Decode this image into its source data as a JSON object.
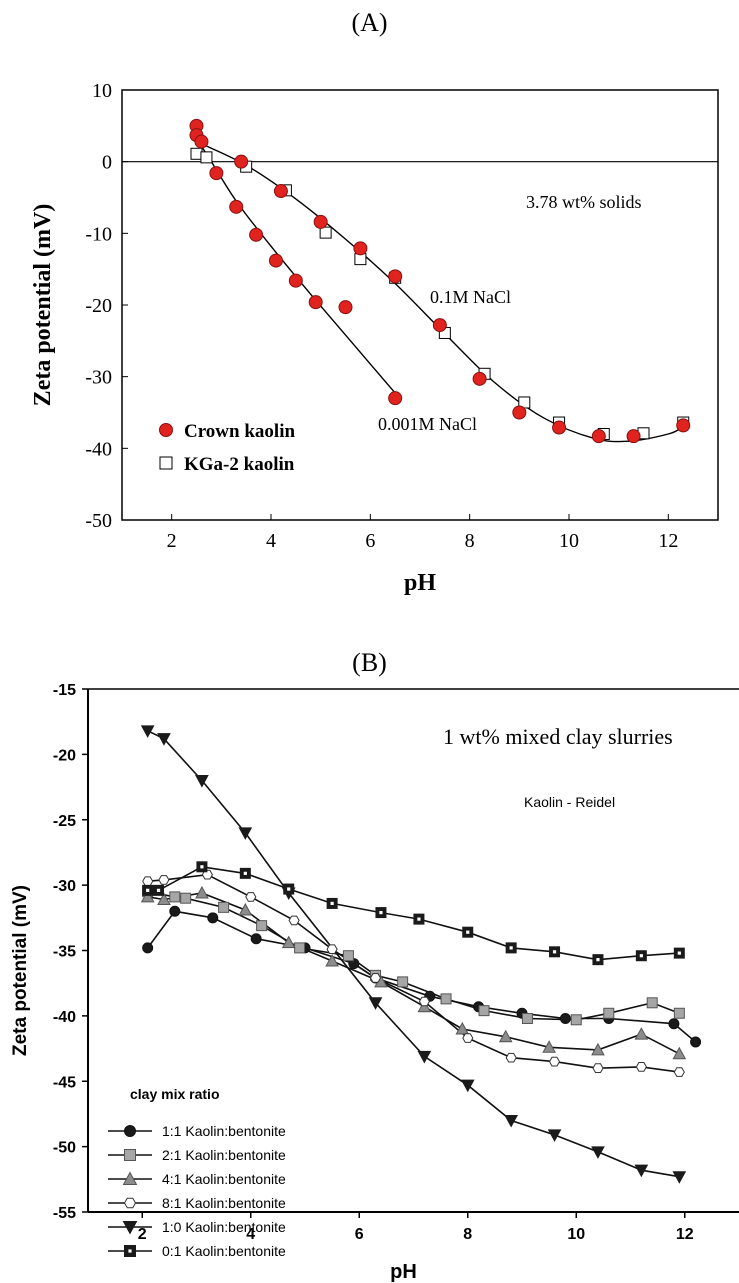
{
  "panels": {
    "a_label": "(A)",
    "b_label": "(B)"
  },
  "chart_data": [
    {
      "type": "scatter",
      "panel": "(A)",
      "xlabel": "pH",
      "ylabel": "Zeta potential (mV)",
      "xlim": [
        1,
        13
      ],
      "ylim": [
        -50,
        10
      ],
      "xticks": [
        2,
        4,
        6,
        8,
        10,
        12
      ],
      "yticks": [
        10,
        0,
        -10,
        -20,
        -30,
        -40,
        -50
      ],
      "grid": false,
      "legend_placement": "bottom-left",
      "annotations": {
        "solids": "3.78 wt% solids",
        "high_salt": "0.1M NaCl",
        "low_salt": "0.001M NaCl"
      },
      "series": [
        {
          "name": "Crown kaolin",
          "marker": "filled-circle",
          "color": "#e0231f",
          "points": [
            [
              2.5,
              5.0
            ],
            [
              2.5,
              3.7
            ],
            [
              2.6,
              2.8
            ],
            [
              2.9,
              -1.6
            ],
            [
              3.3,
              -6.3
            ],
            [
              3.7,
              -10.2
            ],
            [
              4.1,
              -13.8
            ],
            [
              4.5,
              -16.6
            ],
            [
              4.9,
              -19.6
            ],
            [
              5.5,
              -20.3
            ],
            [
              6.5,
              -33.0
            ],
            [
              3.4,
              0.0
            ],
            [
              4.2,
              -4.1
            ],
            [
              5.0,
              -8.4
            ],
            [
              5.8,
              -12.1
            ],
            [
              6.5,
              -16.0
            ],
            [
              7.4,
              -22.8
            ],
            [
              8.2,
              -30.3
            ],
            [
              9.0,
              -35.0
            ],
            [
              9.8,
              -37.1
            ],
            [
              10.6,
              -38.3
            ],
            [
              11.3,
              -38.3
            ],
            [
              12.3,
              -36.8
            ]
          ]
        },
        {
          "name": "KGa-2 kaolin",
          "marker": "open-square",
          "color": "#000000",
          "points": [
            [
              2.5,
              1.1
            ],
            [
              2.7,
              0.6
            ],
            [
              3.5,
              -0.7
            ],
            [
              4.3,
              -4.0
            ],
            [
              5.1,
              -9.9
            ],
            [
              5.8,
              -13.6
            ],
            [
              6.5,
              -16.2
            ],
            [
              7.5,
              -23.9
            ],
            [
              8.3,
              -29.6
            ],
            [
              9.1,
              -33.6
            ],
            [
              9.8,
              -36.4
            ],
            [
              10.7,
              -38.0
            ],
            [
              11.5,
              -37.9
            ],
            [
              12.3,
              -36.4
            ]
          ]
        }
      ],
      "fit_curves": [
        {
          "label": "0.1M NaCl",
          "points": [
            [
              2.6,
              2.5
            ],
            [
              3.5,
              -0.5
            ],
            [
              4.5,
              -5.2
            ],
            [
              5.5,
              -10.8
            ],
            [
              6.5,
              -17.0
            ],
            [
              7.5,
              -24.0
            ],
            [
              8.5,
              -30.8
            ],
            [
              9.5,
              -35.8
            ],
            [
              10.5,
              -38.6
            ],
            [
              11.2,
              -39.0
            ],
            [
              12.0,
              -38.0
            ],
            [
              12.3,
              -37.0
            ]
          ]
        },
        {
          "label": "0.001M NaCl",
          "points": [
            [
              2.5,
              3.2
            ],
            [
              2.8,
              0.0
            ],
            [
              3.3,
              -5.5
            ],
            [
              4.0,
              -11.8
            ],
            [
              4.8,
              -18.5
            ],
            [
              5.6,
              -25.0
            ],
            [
              6.5,
              -32.3
            ]
          ]
        }
      ]
    },
    {
      "type": "line",
      "panel": "(B)",
      "title": "1 wt% mixed clay slurries",
      "subtitle": "Kaolin - Reidel",
      "xlabel": "pH",
      "ylabel": "Zeta potential (mV)",
      "xlim": [
        1.0,
        13.0
      ],
      "ylim": [
        -55,
        -15
      ],
      "xticks": [
        2,
        4,
        6,
        8,
        10,
        12
      ],
      "yticks": [
        -15,
        -20,
        -25,
        -30,
        -35,
        -40,
        -45,
        -50,
        -55
      ],
      "grid": false,
      "legend_title": "clay mix ratio",
      "legend_placement": "bottom-left",
      "series": [
        {
          "name": "1:1 Kaolin:bentonite",
          "marker": "filled-circle",
          "color": "#1a1a1a",
          "points": [
            [
              2.1,
              -34.8
            ],
            [
              2.6,
              -32.0
            ],
            [
              3.3,
              -32.5
            ],
            [
              4.1,
              -34.1
            ],
            [
              5.0,
              -34.8
            ],
            [
              5.9,
              -36.0
            ],
            [
              6.3,
              -37.1
            ],
            [
              7.3,
              -38.5
            ],
            [
              8.2,
              -39.3
            ],
            [
              9.0,
              -39.8
            ],
            [
              9.8,
              -40.2
            ],
            [
              10.6,
              -40.2
            ],
            [
              11.8,
              -40.6
            ],
            [
              12.2,
              -42.0
            ]
          ]
        },
        {
          "name": "2:1 Kaolin:bentonite",
          "marker": "filled-square",
          "color": "#a6a6a6",
          "points": [
            [
              2.1,
              -30.5
            ],
            [
              2.6,
              -30.9
            ],
            [
              2.8,
              -31.0
            ],
            [
              3.5,
              -31.7
            ],
            [
              4.2,
              -33.1
            ],
            [
              4.9,
              -34.8
            ],
            [
              5.8,
              -35.4
            ],
            [
              6.3,
              -36.9
            ],
            [
              6.8,
              -37.4
            ],
            [
              7.6,
              -38.7
            ],
            [
              8.3,
              -39.6
            ],
            [
              9.1,
              -40.2
            ],
            [
              10.0,
              -40.3
            ],
            [
              10.6,
              -39.8
            ],
            [
              11.4,
              -39.0
            ],
            [
              11.9,
              -39.8
            ]
          ]
        },
        {
          "name": "4:1 Kaolin:bentonite",
          "marker": "filled-triangle-up",
          "color": "#8c8c8c",
          "points": [
            [
              2.1,
              -30.9
            ],
            [
              2.4,
              -31.1
            ],
            [
              3.1,
              -30.6
            ],
            [
              3.9,
              -31.9
            ],
            [
              4.7,
              -34.4
            ],
            [
              5.5,
              -35.8
            ],
            [
              6.4,
              -37.4
            ],
            [
              7.2,
              -39.3
            ],
            [
              7.9,
              -41.0
            ],
            [
              8.7,
              -41.6
            ],
            [
              9.5,
              -42.4
            ],
            [
              10.4,
              -42.6
            ],
            [
              11.2,
              -41.4
            ],
            [
              11.9,
              -42.9
            ]
          ]
        },
        {
          "name": "8:1 Kaolin:bentonite",
          "marker": "open-hexagon",
          "color": "#ffffff",
          "points": [
            [
              2.1,
              -29.7
            ],
            [
              2.4,
              -29.6
            ],
            [
              3.2,
              -29.2
            ],
            [
              4.0,
              -30.9
            ],
            [
              4.8,
              -32.7
            ],
            [
              5.5,
              -34.9
            ],
            [
              6.3,
              -37.1
            ],
            [
              7.2,
              -38.9
            ],
            [
              8.0,
              -41.7
            ],
            [
              8.8,
              -43.2
            ],
            [
              9.6,
              -43.5
            ],
            [
              10.4,
              -44.0
            ],
            [
              11.2,
              -43.9
            ],
            [
              11.9,
              -44.3
            ]
          ]
        },
        {
          "name": "1:0 Kaolin:bentonite",
          "marker": "filled-triangle-down",
          "color": "#1a1a1a",
          "points": [
            [
              2.1,
              -18.2
            ],
            [
              2.4,
              -18.8
            ],
            [
              3.1,
              -22.0
            ],
            [
              3.9,
              -26.0
            ],
            [
              4.7,
              -30.6
            ],
            [
              6.3,
              -39.0
            ],
            [
              7.2,
              -43.1
            ],
            [
              8.0,
              -45.3
            ],
            [
              8.8,
              -48.0
            ],
            [
              9.6,
              -49.1
            ],
            [
              10.4,
              -50.4
            ],
            [
              11.2,
              -51.8
            ],
            [
              11.9,
              -52.3
            ]
          ]
        },
        {
          "name": "0:1 Kaolin:bentonite",
          "marker": "open-square-dot",
          "color": "#1a1a1a",
          "points": [
            [
              2.1,
              -30.4
            ],
            [
              2.3,
              -30.4
            ],
            [
              3.1,
              -28.6
            ],
            [
              3.9,
              -29.1
            ],
            [
              4.7,
              -30.3
            ],
            [
              5.5,
              -31.4
            ],
            [
              6.4,
              -32.1
            ],
            [
              7.1,
              -32.6
            ],
            [
              8.0,
              -33.6
            ],
            [
              8.8,
              -34.8
            ],
            [
              9.6,
              -35.1
            ],
            [
              10.4,
              -35.7
            ],
            [
              11.2,
              -35.4
            ],
            [
              11.9,
              -35.2
            ]
          ]
        }
      ]
    }
  ]
}
